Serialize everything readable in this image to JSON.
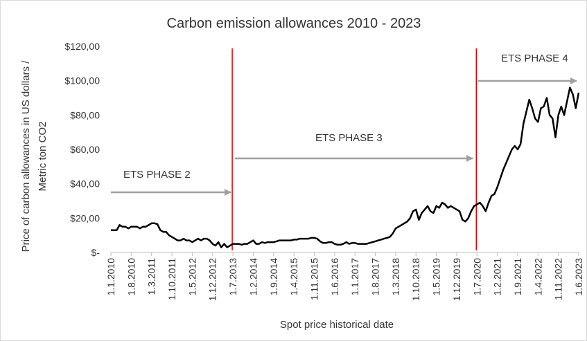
{
  "chart_data": {
    "type": "line",
    "title": "Carbon emission allowances 2010 - 2023",
    "x_label": "Spot price historical date",
    "y_label": [
      "Price of carbon allowances in US dollars /",
      "Metric ton CO2"
    ],
    "annotations": [
      "ETS PHASE 2",
      "ETS PHASE 3",
      "ETS PHASE 4"
    ],
    "categories": [
      "1.1.2010",
      null,
      null,
      null,
      null,
      null,
      null,
      "1.8.2010",
      null,
      null,
      null,
      null,
      null,
      null,
      "1.3.2011",
      null,
      null,
      null,
      null,
      null,
      null,
      "1.10.2011",
      null,
      null,
      null,
      null,
      null,
      null,
      "1.5.2012",
      null,
      null,
      null,
      null,
      null,
      null,
      "1.12.2012",
      null,
      null,
      null,
      null,
      null,
      null,
      "1.7.2013",
      null,
      null,
      null,
      null,
      null,
      null,
      "1.2.2014",
      null,
      null,
      null,
      null,
      null,
      null,
      "1.9.2014",
      null,
      null,
      null,
      null,
      null,
      null,
      "1.4.2015",
      null,
      null,
      null,
      null,
      null,
      null,
      "1.11.2015",
      null,
      null,
      null,
      null,
      null,
      null,
      "1.6.2016",
      null,
      null,
      null,
      null,
      null,
      null,
      "1.1.2017",
      null,
      null,
      null,
      null,
      null,
      null,
      "1.8.2017",
      null,
      null,
      null,
      null,
      null,
      null,
      "1.3.2018",
      null,
      null,
      null,
      null,
      null,
      null,
      "1.10.2018",
      null,
      null,
      null,
      null,
      null,
      null,
      "1.5.2019",
      null,
      null,
      null,
      null,
      null,
      null,
      "1.12.2019",
      null,
      null,
      null,
      null,
      null,
      null,
      "1.7.2020",
      null,
      null,
      null,
      null,
      null,
      null,
      "1.2.2021",
      null,
      null,
      null,
      null,
      null,
      null,
      "1.9.2021",
      null,
      null,
      null,
      null,
      null,
      null,
      "1.4.2022",
      null,
      null,
      null,
      null,
      null,
      null,
      "1.11.2022",
      null,
      null,
      null,
      null,
      null,
      null,
      "1.6.2023"
    ],
    "series": [
      {
        "color": "#000000",
        "values": [
          13,
          13,
          13,
          16,
          15,
          15,
          14,
          15,
          15,
          15,
          14,
          15,
          15,
          16,
          17,
          17,
          16.5,
          13,
          12,
          12,
          10,
          9,
          8,
          7,
          7,
          8,
          7,
          7,
          6,
          7,
          8,
          7,
          8,
          8,
          7,
          5,
          4,
          6,
          3,
          5,
          3,
          4,
          5,
          5,
          5,
          4.5,
          5,
          5,
          6,
          7,
          5,
          5,
          6,
          5.5,
          6,
          6,
          6,
          6.5,
          7,
          7,
          7,
          7,
          7,
          7.5,
          7.5,
          8,
          8,
          8,
          8,
          8.5,
          8.5,
          8,
          6.5,
          5.5,
          5.5,
          6,
          6,
          5,
          4.5,
          4.5,
          5,
          6,
          5,
          5.5,
          5.5,
          5,
          5,
          5,
          5,
          5.5,
          6,
          6.5,
          7,
          7.5,
          8,
          8.5,
          9,
          11,
          14,
          15,
          16,
          17,
          18,
          20,
          24,
          25,
          19,
          23,
          25,
          27,
          24,
          23,
          27,
          26,
          29,
          28,
          26,
          27,
          26,
          25,
          24,
          19,
          18,
          20,
          24,
          27,
          28,
          29,
          27,
          24,
          29,
          33,
          34,
          38,
          43,
          48,
          52,
          56,
          60,
          62,
          60,
          63,
          75,
          82,
          89,
          84,
          78,
          76,
          84,
          85,
          90,
          80,
          78,
          67,
          80,
          85,
          80,
          88,
          96,
          92,
          84,
          93
        ]
      }
    ],
    "ylim": [
      0,
      120
    ],
    "yticks": [
      {
        "value": 0,
        "label": "$-"
      },
      {
        "value": 20,
        "label": "$20,00"
      },
      {
        "value": 40,
        "label": "$40,00"
      },
      {
        "value": 60,
        "label": "$60,00"
      },
      {
        "value": 80,
        "label": "$80,00"
      },
      {
        "value": 100,
        "label": "$100,00"
      },
      {
        "value": 120,
        "label": "$120,00"
      }
    ],
    "grid": false
  }
}
